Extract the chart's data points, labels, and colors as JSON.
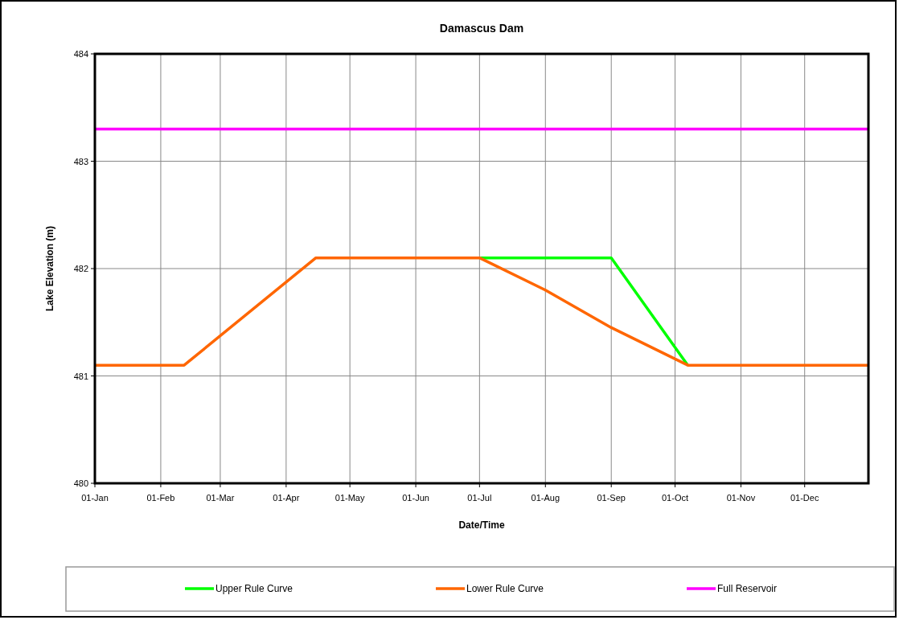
{
  "chart_data": {
    "type": "line",
    "title": "Damascus Dam",
    "xlabel": "Date/Time",
    "ylabel": "Lake Elevation (m)",
    "xlim": [
      "--01-01",
      "--12-31"
    ],
    "xticks": [
      {
        "value": "--01-01",
        "label": "01-Jan"
      },
      {
        "value": "--02-01",
        "label": "01-Feb"
      },
      {
        "value": "--03-01",
        "label": "01-Mar"
      },
      {
        "value": "--04-01",
        "label": "01-Apr"
      },
      {
        "value": "--05-01",
        "label": "01-May"
      },
      {
        "value": "--06-01",
        "label": "01-Jun"
      },
      {
        "value": "--07-01",
        "label": "01-Jul"
      },
      {
        "value": "--08-01",
        "label": "01-Aug"
      },
      {
        "value": "--09-01",
        "label": "01-Sep"
      },
      {
        "value": "--10-01",
        "label": "01-Oct"
      },
      {
        "value": "--11-01",
        "label": "01-Nov"
      },
      {
        "value": "--12-01",
        "label": "01-Dec"
      }
    ],
    "ylim": [
      480,
      484
    ],
    "yticks": [
      480,
      481,
      482,
      483,
      484
    ],
    "grid": true,
    "legend": "bottom",
    "marker": "none",
    "line_style": "solid",
    "series": [
      {
        "name": "Upper Rule Curve",
        "color": "#00ff00",
        "x": [
          "--07-01",
          "--09-01",
          "--10-07"
        ],
        "values": [
          482.1,
          482.1,
          481.1
        ]
      },
      {
        "name": "Lower Rule Curve",
        "color": "#ff6600",
        "x": [
          "--01-01",
          "--02-12",
          "--04-15",
          "--07-01",
          "--08-01",
          "--09-01",
          "--10-07",
          "--12-31"
        ],
        "values": [
          481.1,
          481.1,
          482.1,
          482.1,
          481.8,
          481.45,
          481.1,
          481.1
        ]
      },
      {
        "name": "Full Reservoir",
        "color": "#ff00ff",
        "x": [
          "--01-01",
          "--12-31"
        ],
        "values": [
          483.3,
          483.3
        ]
      }
    ]
  }
}
